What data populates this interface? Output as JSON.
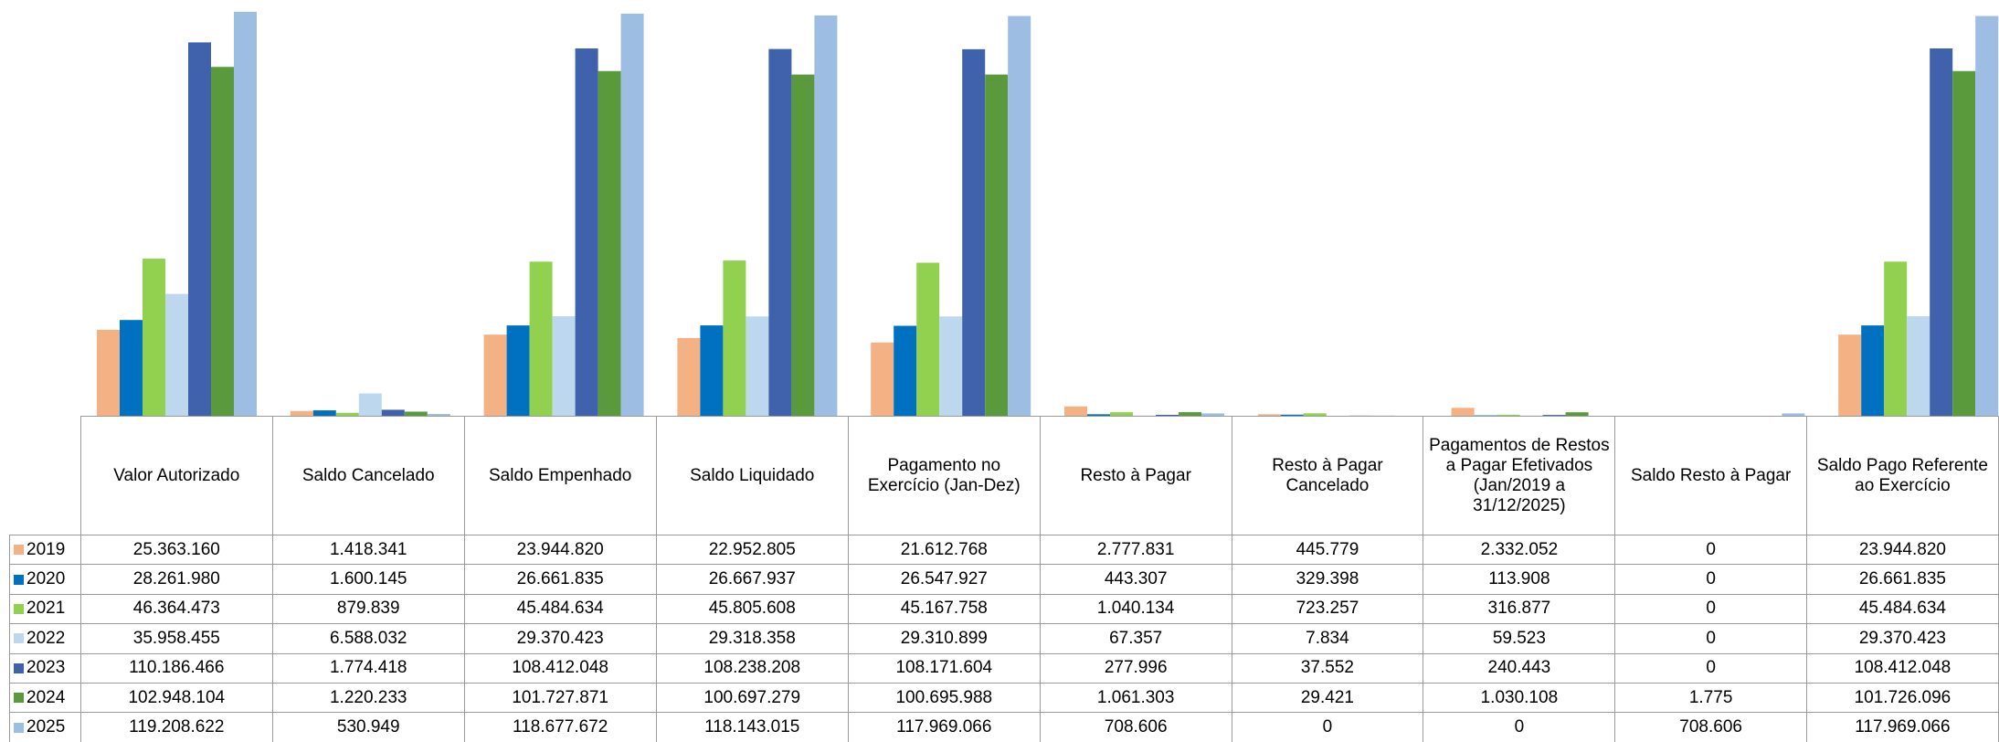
{
  "chart_data": {
    "type": "bar",
    "categories": [
      "Valor Autorizado",
      "Saldo Cancelado",
      "Saldo Empenhado",
      "Saldo Liquidado",
      "Pagamento no Exercício (Jan-Dez)",
      "Resto à Pagar",
      "Resto à Pagar Cancelado",
      "Pagamentos de Restos a Pagar Efetivados (Jan/2019 a 31/12/2025)",
      "Saldo Resto à Pagar",
      "Saldo Pago Referente ao Exercício"
    ],
    "ylim": [
      0,
      120000000
    ],
    "series": [
      {
        "name": "2019",
        "color": "#f4b183",
        "values": [
          25363160,
          1418341,
          23944820,
          22952805,
          21612768,
          2777831,
          445779,
          2332052,
          0,
          23944820
        ],
        "value_labels": [
          "25.363.160",
          "1.418.341",
          "23.944.820",
          "22.952.805",
          "21.612.768",
          "2.777.831",
          "445.779",
          "2.332.052",
          "0",
          "23.944.820"
        ]
      },
      {
        "name": "2020",
        "color": "#0070c0",
        "values": [
          28261980,
          1600145,
          26661835,
          26667937,
          26547927,
          443307,
          329398,
          113908,
          0,
          26661835
        ],
        "value_labels": [
          "28.261.980",
          "1.600.145",
          "26.661.835",
          "26.667.937",
          "26.547.927",
          "443.307",
          "329.398",
          "113.908",
          "0",
          "26.661.835"
        ]
      },
      {
        "name": "2021",
        "color": "#92d050",
        "values": [
          46364473,
          879839,
          45484634,
          45805608,
          45167758,
          1040134,
          723257,
          316877,
          0,
          45484634
        ],
        "value_labels": [
          "46.364.473",
          "879.839",
          "45.484.634",
          "45.805.608",
          "45.167.758",
          "1.040.134",
          "723.257",
          "316.877",
          "0",
          "45.484.634"
        ]
      },
      {
        "name": "2022",
        "color": "#bdd7ee",
        "values": [
          35958455,
          6588032,
          29370423,
          29318358,
          29310899,
          67357,
          7834,
          59523,
          0,
          29370423
        ],
        "value_labels": [
          "35.958.455",
          "6.588.032",
          "29.370.423",
          "29.318.358",
          "29.310.899",
          "67.357",
          "7.834",
          "59.523",
          "0",
          "29.370.423"
        ]
      },
      {
        "name": "2023",
        "color": "#4062ad",
        "values": [
          110186466,
          1774418,
          108412048,
          108238208,
          108171604,
          277996,
          37552,
          240443,
          0,
          108412048
        ],
        "value_labels": [
          "110.186.466",
          "1.774.418",
          "108.412.048",
          "108.238.208",
          "108.171.604",
          "277.996",
          "37.552",
          "240.443",
          "0",
          "108.412.048"
        ]
      },
      {
        "name": "2024",
        "color": "#5b9a3c",
        "values": [
          102948104,
          1220233,
          101727871,
          100697279,
          100695988,
          1061303,
          29421,
          1030108,
          1775,
          101726096
        ],
        "value_labels": [
          "102.948.104",
          "1.220.233",
          "101.727.871",
          "100.697.279",
          "100.695.988",
          "1.061.303",
          "29.421",
          "1.030.108",
          "1.775",
          "101.726.096"
        ]
      },
      {
        "name": "2025",
        "color": "#9dbde3",
        "values": [
          119208622,
          530949,
          118677672,
          118143015,
          117969066,
          708606,
          0,
          0,
          708606,
          117969066
        ],
        "value_labels": [
          "119.208.622",
          "530.949",
          "118.677.672",
          "118.143.015",
          "117.969.066",
          "708.606",
          "0",
          "0",
          "708.606",
          "117.969.066"
        ]
      }
    ]
  }
}
